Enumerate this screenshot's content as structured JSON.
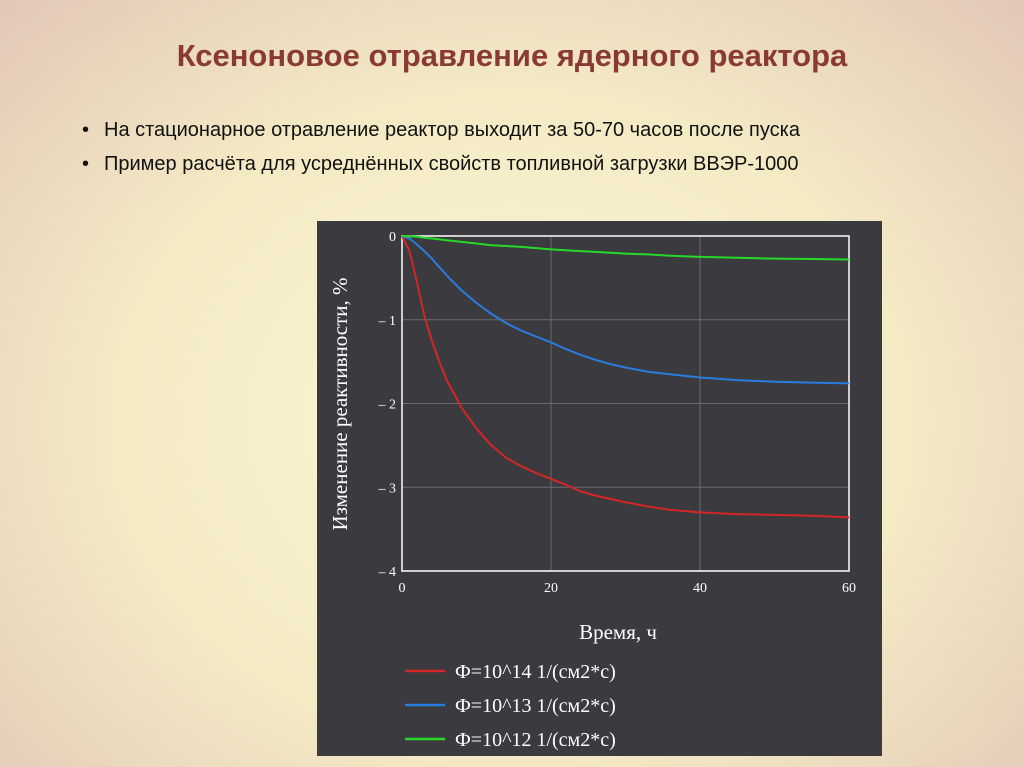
{
  "slide": {
    "title": "Ксеноновое отравление ядерного реактора",
    "bullets": [
      "На стационарное отравление реактор выходит за 50-70 часов после пуска",
      "Пример расчёта для усреднённых свойств топливной загрузки ВВЭР-1000"
    ]
  },
  "colors": {
    "background": "#f4eac4",
    "title": "#8a3a36",
    "chart_background": "#3a3a3f",
    "series": [
      "#d42626",
      "#2a7de0",
      "#27d827"
    ]
  },
  "chart_data": {
    "type": "line",
    "xlabel": "Время, ч",
    "ylabel": "Изменение реактивности, %",
    "xlim": [
      0,
      60
    ],
    "ylim": [
      -4,
      0
    ],
    "xticks": [
      "0",
      "20",
      "40",
      "60"
    ],
    "yticks": [
      "0",
      "– 1",
      "– 2",
      "– 3",
      "– 4"
    ],
    "xtick_values": [
      0,
      20,
      40,
      60
    ],
    "ytick_values": [
      0,
      -1,
      -2,
      -3,
      -4
    ],
    "grid": true,
    "legend_position": "bottom",
    "x": [
      0,
      1,
      2,
      3,
      4,
      5,
      6,
      8,
      10,
      12,
      14,
      16,
      18,
      20,
      22,
      24,
      26,
      28,
      30,
      33,
      36,
      40,
      45,
      50,
      55,
      60
    ],
    "series": [
      {
        "name": "Ф=10^14 1/(см2*с)",
        "values": [
          0,
          -0.18,
          -0.55,
          -0.95,
          -1.25,
          -1.5,
          -1.72,
          -2.05,
          -2.3,
          -2.5,
          -2.65,
          -2.75,
          -2.83,
          -2.9,
          -2.97,
          -3.05,
          -3.1,
          -3.14,
          -3.18,
          -3.23,
          -3.27,
          -3.3,
          -3.32,
          -3.33,
          -3.34,
          -3.36
        ]
      },
      {
        "name": "Ф=10^13 1/(см2*с)",
        "values": [
          0,
          -0.03,
          -0.1,
          -0.18,
          -0.27,
          -0.37,
          -0.47,
          -0.65,
          -0.8,
          -0.93,
          -1.04,
          -1.13,
          -1.2,
          -1.27,
          -1.35,
          -1.42,
          -1.48,
          -1.53,
          -1.57,
          -1.62,
          -1.65,
          -1.69,
          -1.72,
          -1.74,
          -1.75,
          -1.76
        ]
      },
      {
        "name": "Ф=10^12 1/(см2*с)",
        "values": [
          0,
          -0.005,
          -0.01,
          -0.02,
          -0.03,
          -0.04,
          -0.05,
          -0.07,
          -0.09,
          -0.11,
          -0.12,
          -0.13,
          -0.145,
          -0.16,
          -0.17,
          -0.18,
          -0.19,
          -0.2,
          -0.21,
          -0.22,
          -0.235,
          -0.25,
          -0.26,
          -0.27,
          -0.275,
          -0.28
        ]
      }
    ]
  }
}
